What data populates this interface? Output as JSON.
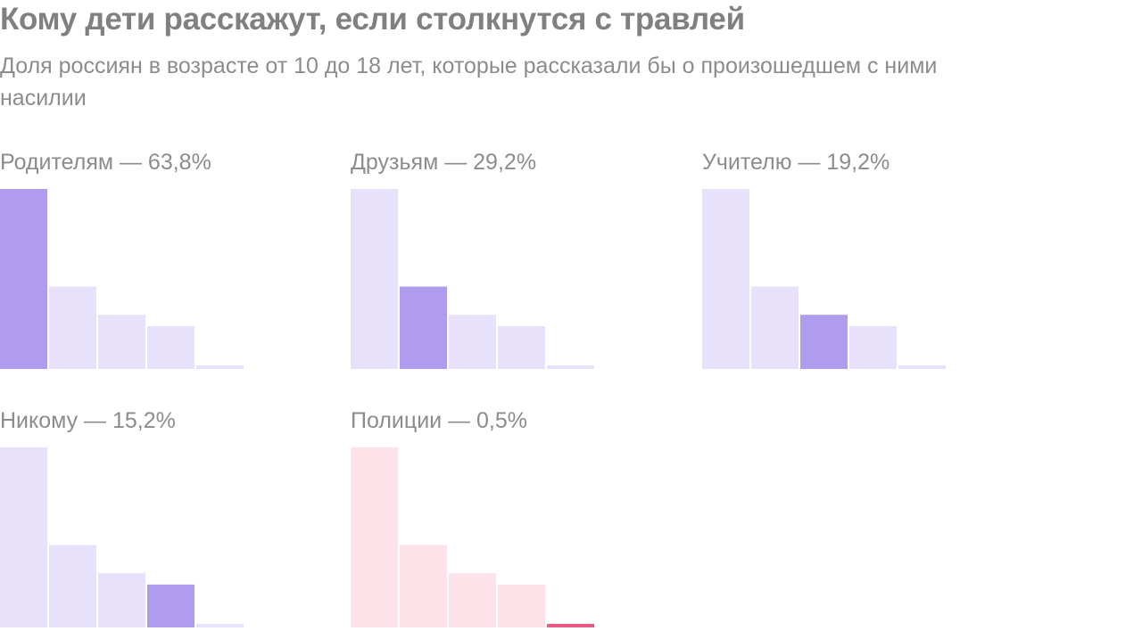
{
  "title": "Кому дети расскажут, если столкнутся с травлей",
  "subtitle": "Доля россиян в возрасте от 10 до 18 лет, которые рассказали бы о произошедшем с ними насилии",
  "colors": {
    "purple_highlight": "#b09cee",
    "purple_light": "#e8e1fb",
    "red_highlight": "#e85a83",
    "red_light": "#fde2ea"
  },
  "chart_data": {
    "type": "bar",
    "categories": [
      "Родителям",
      "Друзьям",
      "Учителю",
      "Никому",
      "Полиции"
    ],
    "values": [
      63.8,
      29.2,
      19.2,
      15.2,
      0.5
    ],
    "ylim": [
      0,
      63.8
    ],
    "panels": [
      {
        "label": "Родителям — 63,8%",
        "highlight": 0,
        "scheme": "purple"
      },
      {
        "label": "Друзьям — 29,2%",
        "highlight": 1,
        "scheme": "purple"
      },
      {
        "label": "Учителю — 19,2%",
        "highlight": 2,
        "scheme": "purple"
      },
      {
        "label": "Никому — 15,2%",
        "highlight": 3,
        "scheme": "purple"
      },
      {
        "label": "Полиции — 0,5%",
        "highlight": 4,
        "scheme": "red"
      }
    ]
  }
}
